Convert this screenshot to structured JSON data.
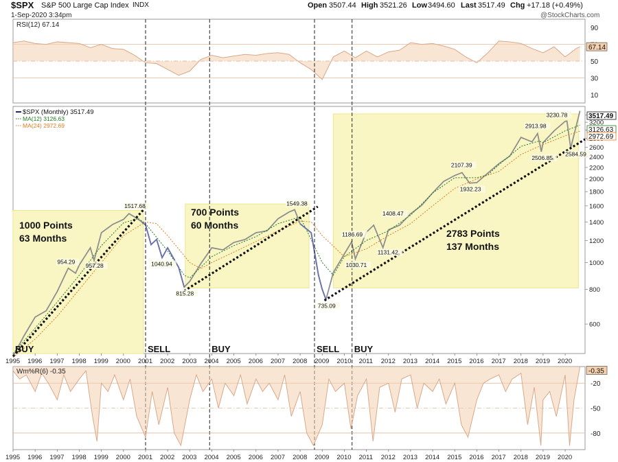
{
  "header": {
    "symbol": "$SPX",
    "name": "S&P 500 Large Cap Index",
    "exchange": "INDX",
    "open_label": "Open",
    "open": "3507.44",
    "high_label": "High",
    "high": "3521.26",
    "low_label": "Low",
    "low": "3494.60",
    "last_label": "Last",
    "last": "3517.49",
    "chg_label": "Chg",
    "chg": "+17.18 (+0.49%)",
    "date": "1-Sep-2020 3:34pm",
    "watermark": "@StockCharts.com"
  },
  "chart_data": [
    {
      "type": "line",
      "panel": "rsi",
      "legend": "RSI(12) 67.14",
      "last_value": "67.14",
      "ylim": [
        0,
        100
      ],
      "ticks": [
        "90",
        "70",
        "50",
        "30",
        "10"
      ],
      "tick_values": [
        90,
        70,
        50,
        30,
        10
      ],
      "reference_lines": [
        70,
        50,
        30
      ],
      "x": [
        1995,
        1995.5,
        1996,
        1996.5,
        1997,
        1997.5,
        1998,
        1998.5,
        1999,
        1999.5,
        2000,
        2000.5,
        2001,
        2001.5,
        2002,
        2002.5,
        2003,
        2003.5,
        2004,
        2004.5,
        2005,
        2005.5,
        2006,
        2006.5,
        2007,
        2007.5,
        2008,
        2008.5,
        2009,
        2009.5,
        2010,
        2010.5,
        2011,
        2011.5,
        2012,
        2012.5,
        2013,
        2013.5,
        2014,
        2014.5,
        2015,
        2015.5,
        2016,
        2016.5,
        2017,
        2017.5,
        2018,
        2018.5,
        2019,
        2019.5,
        2020,
        2020.5,
        2020.67
      ],
      "values": [
        72,
        74,
        71,
        70,
        73,
        72,
        71,
        66,
        70,
        65,
        64,
        57,
        48,
        47,
        40,
        33,
        38,
        52,
        57,
        54,
        56,
        58,
        57,
        59,
        60,
        58,
        48,
        40,
        28,
        55,
        62,
        54,
        62,
        55,
        61,
        63,
        72,
        70,
        71,
        68,
        64,
        55,
        48,
        60,
        74,
        73,
        71,
        65,
        60,
        67,
        55,
        65,
        67.14
      ]
    },
    {
      "type": "line",
      "panel": "price",
      "scale": "log",
      "title": "S&P 500 Large Cap Index",
      "legend": [
        {
          "name": "$SPX (Monthly) 3517.49",
          "color": "#1e2470"
        },
        {
          "name": "MA(12) 3126.63",
          "color": "#1f7a1f"
        },
        {
          "name": "MA(24) 2972.69",
          "color": "#e07b1e"
        }
      ],
      "ylim": [
        470,
        3650
      ],
      "yticks": [
        "3400",
        "3200",
        "3000",
        "2800",
        "2600",
        "2400",
        "2200",
        "2000",
        "1800",
        "1600",
        "1400",
        "1200",
        "1000",
        "800",
        "600"
      ],
      "ytick_values": [
        3400,
        3200,
        3000,
        2800,
        2600,
        2400,
        2200,
        2000,
        1800,
        1600,
        1400,
        1200,
        1000,
        800,
        600
      ],
      "xlim": [
        1995,
        2020.9
      ],
      "x_tick_labels": [
        "1995",
        "1996",
        "1997",
        "1998",
        "1999",
        "2000",
        "2001",
        "2002",
        "2003",
        "2004",
        "2005",
        "2006",
        "2007",
        "2008",
        "2009",
        "2010",
        "2011",
        "2012",
        "2013",
        "2014",
        "2015",
        "2016",
        "2017",
        "2018",
        "2019",
        "2020"
      ],
      "x_tick_values": [
        1995,
        1996,
        1997,
        1998,
        1999,
        2000,
        2001,
        2002,
        2003,
        2004,
        2005,
        2006,
        2007,
        2008,
        2009,
        2010,
        2011,
        2012,
        2013,
        2014,
        2015,
        2016,
        2017,
        2018,
        2019,
        2020
      ],
      "series": [
        {
          "name": "$SPX (Monthly)",
          "x": [
            1995,
            1995.5,
            1996,
            1996.5,
            1997,
            1997.5,
            1997.83,
            1998,
            1998.5,
            1998.67,
            1999,
            1999.5,
            2000,
            2000.25,
            2000.5,
            2000.83,
            2001,
            2001.25,
            2001.5,
            2001.75,
            2002,
            2002.5,
            2002.75,
            2003,
            2003.5,
            2004,
            2004.5,
            2005,
            2005.5,
            2006,
            2006.5,
            2007,
            2007.5,
            2007.75,
            2008,
            2008.5,
            2008.83,
            2009,
            2009.17,
            2009.5,
            2010,
            2010.33,
            2010.5,
            2011,
            2011.33,
            2011.75,
            2012,
            2012.5,
            2013,
            2013.5,
            2014,
            2014.5,
            2015,
            2015.33,
            2015.67,
            2016,
            2016.5,
            2017,
            2017.5,
            2018,
            2018.5,
            2018.75,
            2018.92,
            2019,
            2019.5,
            2020,
            2020.08,
            2020.25,
            2020.5,
            2020.67
          ],
          "values": [
            459,
            545,
            636,
            670,
            786,
            954,
            915,
            980,
            1130,
            1017,
            1280,
            1370,
            1430,
            1500,
            1460,
            1400,
            1366,
            1160,
            1211,
            1040.94,
            1130,
            960,
            815.28,
            855,
            990,
            1130,
            1110,
            1181,
            1210,
            1280,
            1300,
            1438,
            1520,
            1549.38,
            1378,
            1280,
            900,
            800,
            735.09,
            920,
            1073,
            1186.69,
            1030.71,
            1286,
            1363,
            1131.42,
            1312,
            1362,
            1498,
            1606,
            1782,
            1960,
            2058,
            2107.39,
            1932.23,
            1940,
            2100,
            2270,
            2420,
            2823,
            2720,
            2913.98,
            2506.85,
            2704,
            2980,
            3225,
            3230.78,
            2584.59,
            3100,
            3517.49
          ]
        },
        {
          "name": "MA(12)",
          "x": [
            1995,
            1996,
            1997,
            1998,
            1999,
            2000,
            2000.67,
            2001,
            2002,
            2002.75,
            2003,
            2004,
            2005,
            2006,
            2007,
            2008,
            2009,
            2009.5,
            2010,
            2011,
            2012,
            2013,
            2014,
            2015,
            2016,
            2016.5,
            2017,
            2018,
            2018.83,
            2019,
            2020,
            2020.67
          ],
          "values": [
            470,
            580,
            720,
            900,
            1150,
            1390,
            1440,
            1380,
            1100,
            900,
            880,
            1050,
            1150,
            1240,
            1380,
            1460,
            1000,
            900,
            1050,
            1200,
            1300,
            1480,
            1780,
            2020,
            2020,
            2070,
            2250,
            2620,
            2740,
            2700,
            2980,
            3126.63
          ]
        },
        {
          "name": "MA(24)",
          "x": [
            1995,
            1996,
            1997,
            1998,
            1999,
            2000,
            2001,
            2001.5,
            2002,
            2003,
            2003.5,
            2004,
            2005,
            2006,
            2007,
            2008,
            2008.5,
            2009,
            2010,
            2011,
            2012,
            2013,
            2014,
            2015,
            2016,
            2017,
            2018,
            2019,
            2020,
            2020.67
          ],
          "values": [
            455,
            530,
            640,
            800,
            1000,
            1250,
            1400,
            1380,
            1250,
            1000,
            950,
            1000,
            1090,
            1190,
            1300,
            1410,
            1400,
            1250,
            1050,
            1120,
            1250,
            1380,
            1600,
            1850,
            2000,
            2130,
            2450,
            2660,
            2860,
            2972.69
          ]
        }
      ],
      "data_labels": [
        {
          "text": "1517.68",
          "x": 2000.6,
          "y": 1517.68
        },
        {
          "text": "954.29",
          "x": 1997.5,
          "y": 954.29
        },
        {
          "text": "957.28",
          "x": 1998.6,
          "y": 957.28
        },
        {
          "text": "1040.94",
          "x": 2001.75,
          "y": 1040.94
        },
        {
          "text": "815.28",
          "x": 2002.75,
          "y": 815.28
        },
        {
          "text": "1549.38",
          "x": 2007.75,
          "y": 1549.38
        },
        {
          "text": "735.09",
          "x": 2009.17,
          "y": 735.09
        },
        {
          "text": "1186.69",
          "x": 2010.33,
          "y": 1186.69
        },
        {
          "text": "1030.71",
          "x": 2010.5,
          "y": 1030.71
        },
        {
          "text": "1408.47",
          "x": 2012.1,
          "y": 1408.47
        },
        {
          "text": "1131.42",
          "x": 2011.75,
          "y": 1131.42
        },
        {
          "text": "2107.39",
          "x": 2015.33,
          "y": 2107.39
        },
        {
          "text": "1932.23",
          "x": 2015.67,
          "y": 1932.23
        },
        {
          "text": "2913.98",
          "x": 2018.75,
          "y": 2913.98
        },
        {
          "text": "3230.78",
          "x": 2020.08,
          "y": 3230.78
        },
        {
          "text": "2506.85",
          "x": 2018.92,
          "y": 2506.85
        },
        {
          "text": "2584.59",
          "x": 2020.25,
          "y": 2584.59
        }
      ],
      "right_labels": [
        {
          "text": "3517.49",
          "value": 3517.49
        },
        {
          "text": "3126.63",
          "value": 3126.63
        },
        {
          "text": "2972.69",
          "value": 2972.69
        }
      ],
      "trendlines": [
        {
          "from": [
            1995,
            459
          ],
          "to": [
            2001,
            1580
          ]
        },
        {
          "from": [
            2002.75,
            790
          ],
          "to": [
            2008.8,
            1590
          ]
        },
        {
          "from": [
            2009.1,
            730
          ],
          "to": [
            2020.9,
            2780
          ]
        }
      ],
      "shaded_boxes": [
        {
          "x0": 1995,
          "x1": 2000.9,
          "y0": 470,
          "y1": 1540,
          "labels": [
            "1000 Points",
            "63 Months"
          ]
        },
        {
          "x0": 2002.8,
          "x1": 2008.4,
          "y0": 810,
          "y1": 1625,
          "labels": [
            "700 Points",
            "60 Months"
          ]
        },
        {
          "x0": 2009.5,
          "x1": 2020.6,
          "y0": 810,
          "y1": 3430,
          "labels": [
            "2783 Points",
            "137 Months"
          ]
        }
      ],
      "signals": [
        {
          "text": "BUY",
          "x": 1995
        },
        {
          "text": "SELL",
          "x": 2001
        },
        {
          "text": "BUY",
          "x": 2003.9
        },
        {
          "text": "SELL",
          "x": 2008.65
        },
        {
          "text": "BUY",
          "x": 2010.35
        }
      ]
    },
    {
      "type": "line",
      "panel": "williams",
      "legend": "Wm%R(6) -0.35",
      "last_value": "-0.35",
      "ylim": [
        -100,
        0
      ],
      "ticks": [
        "-20",
        "-50",
        "-80"
      ],
      "tick_values": [
        -20,
        -50,
        -80
      ],
      "reference_lines": [
        -20,
        -50,
        -80
      ],
      "x": [
        1995,
        1995.3,
        1995.6,
        1996,
        1996.3,
        1996.6,
        1997,
        1997.3,
        1997.6,
        1998,
        1998.3,
        1998.6,
        1998.8,
        1999,
        1999.3,
        1999.6,
        2000,
        2000.3,
        2000.6,
        2001,
        2001.3,
        2001.6,
        2002,
        2002.3,
        2002.6,
        2003,
        2003.3,
        2003.6,
        2004,
        2004.3,
        2004.6,
        2005,
        2005.3,
        2005.6,
        2006,
        2006.3,
        2006.6,
        2007,
        2007.3,
        2007.6,
        2008,
        2008.3,
        2008.6,
        2009,
        2009.3,
        2009.6,
        2010,
        2010.3,
        2010.6,
        2011,
        2011.3,
        2011.6,
        2012,
        2012.3,
        2012.6,
        2013,
        2013.3,
        2013.6,
        2014,
        2014.3,
        2014.6,
        2015,
        2015.3,
        2015.6,
        2016,
        2016.3,
        2016.6,
        2017,
        2017.3,
        2017.6,
        2018,
        2018.3,
        2018.6,
        2018.9,
        2019,
        2019.3,
        2019.6,
        2020,
        2020.2,
        2020.4,
        2020.67
      ],
      "values": [
        -5,
        -15,
        -10,
        -30,
        -8,
        -20,
        -40,
        -10,
        -30,
        -15,
        -5,
        -60,
        -90,
        -20,
        -30,
        -10,
        -40,
        -15,
        -60,
        -85,
        -30,
        -70,
        -25,
        -80,
        -95,
        -40,
        -10,
        -30,
        -15,
        -50,
        -20,
        -35,
        -10,
        -45,
        -15,
        -30,
        -20,
        -40,
        -10,
        -60,
        -30,
        -80,
        -95,
        -70,
        -15,
        -30,
        -20,
        -75,
        -35,
        -15,
        -90,
        -25,
        -20,
        -55,
        -15,
        -10,
        -50,
        -20,
        -30,
        -15,
        -45,
        -20,
        -70,
        -85,
        -40,
        -20,
        -15,
        -10,
        -30,
        -15,
        -8,
        -70,
        -25,
        -95,
        -40,
        -30,
        -60,
        -10,
        -95,
        -40,
        -0.35
      ]
    }
  ]
}
